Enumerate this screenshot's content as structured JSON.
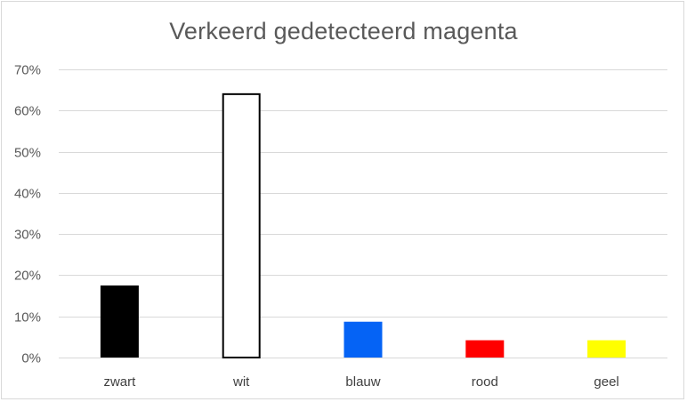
{
  "chart_data": {
    "type": "bar",
    "title": "Verkeerd gedetecteerd magenta",
    "categories": [
      "zwart",
      "wit",
      "blauw",
      "rood",
      "geel"
    ],
    "values": [
      17.5,
      64.2,
      8.7,
      4.2,
      4.2
    ],
    "bar_colors": [
      "#000000",
      "#ffffff",
      "#0563f5",
      "#ff0000",
      "#ffff00"
    ],
    "bar_outline": "#000000",
    "ylim": [
      0,
      70
    ],
    "yticks": [
      0,
      10,
      20,
      30,
      40,
      50,
      60,
      70
    ],
    "ytick_labels": [
      "0%",
      "10%",
      "20%",
      "30%",
      "40%",
      "50%",
      "60%",
      "70%"
    ],
    "grid": true,
    "grid_color": "#d9d9d9",
    "xlabel": "",
    "ylabel": ""
  }
}
